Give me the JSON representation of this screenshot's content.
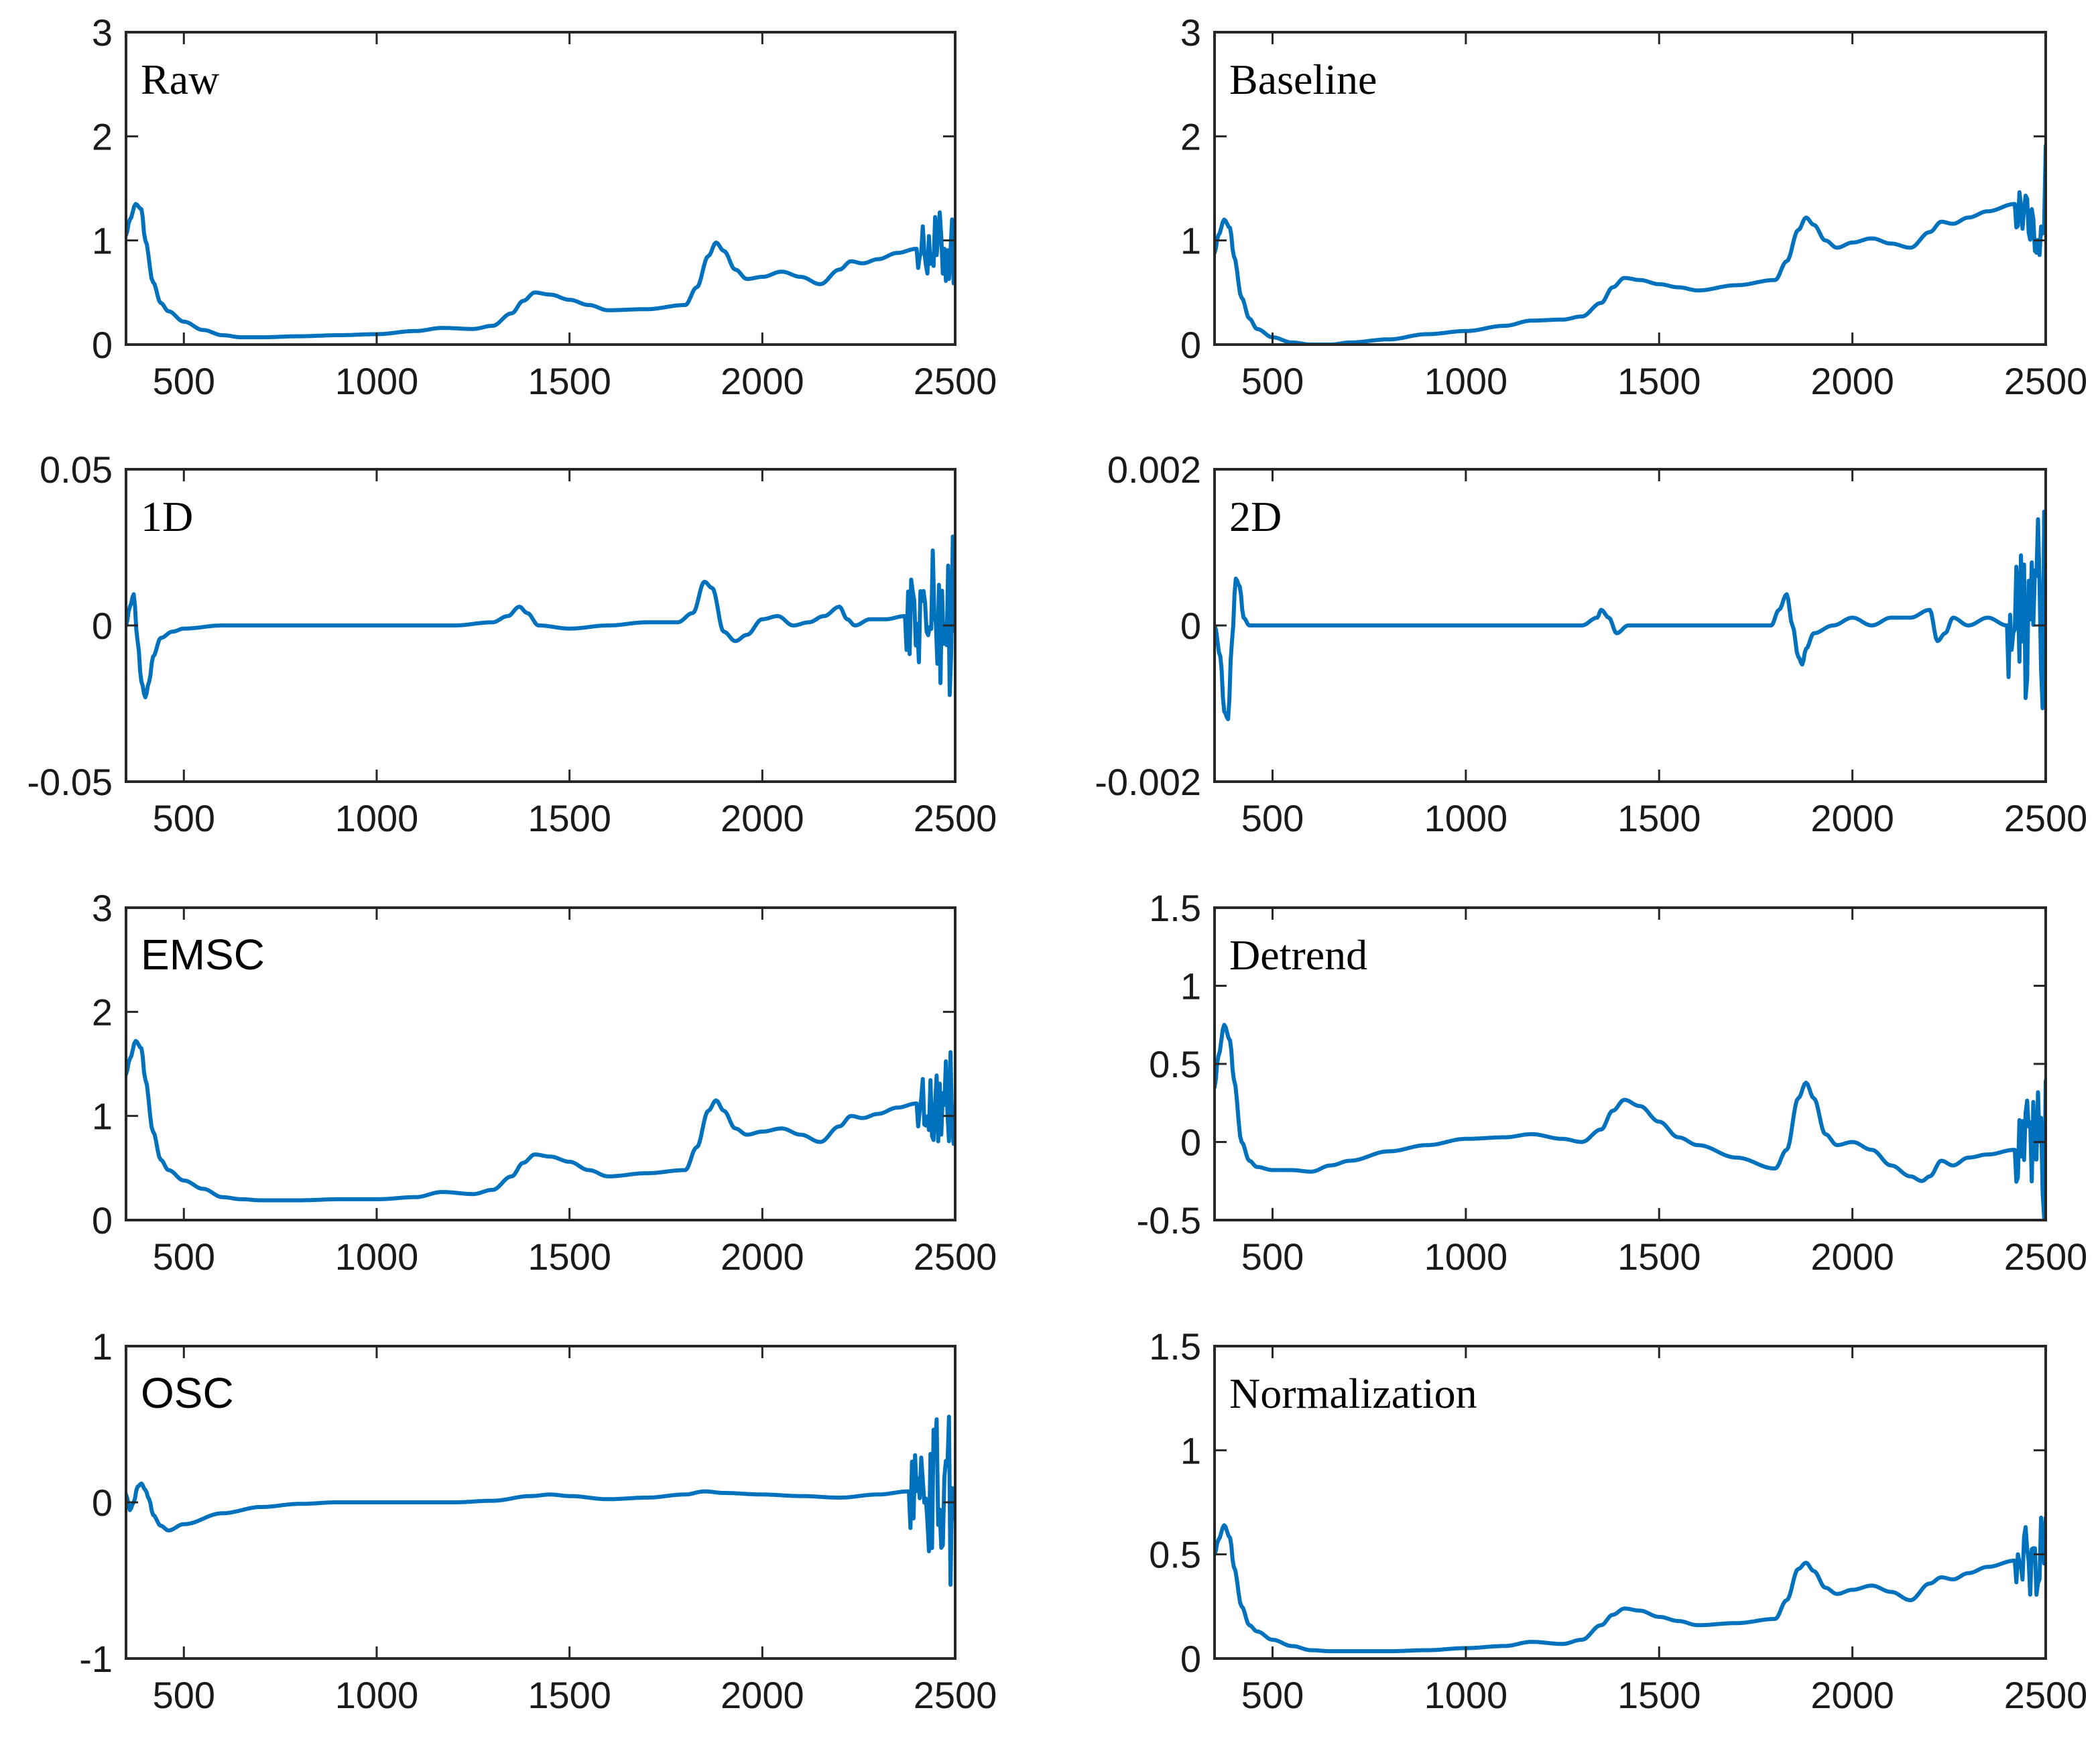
{
  "chart_data": [
    {
      "id": "raw",
      "type": "line",
      "title": "Raw",
      "title_font": "serif",
      "xlim": [
        350,
        2500
      ],
      "ylim": [
        0,
        3
      ],
      "xticks": [
        500,
        1000,
        1500,
        2000,
        2500
      ],
      "xtick_labels": [
        "500",
        "1000",
        "1500",
        "2000",
        "2500"
      ],
      "yticks": [
        0,
        1,
        2,
        3
      ],
      "ytick_labels": [
        "0",
        "1",
        "2",
        "3"
      ],
      "color": "#0072BD",
      "noise_start": 2400,
      "noise_amp": 0.5,
      "series": [
        {
          "name": "Raw",
          "x": [
            350,
            360,
            375,
            390,
            400,
            420,
            440,
            460,
            500,
            550,
            600,
            650,
            700,
            800,
            900,
            1000,
            1100,
            1170,
            1250,
            1300,
            1350,
            1380,
            1410,
            1450,
            1500,
            1550,
            1600,
            1700,
            1800,
            1830,
            1860,
            1880,
            1900,
            1930,
            1960,
            2000,
            2050,
            2100,
            2150,
            2200,
            2230,
            2260,
            2300,
            2350,
            2400
          ],
          "y": [
            1.05,
            1.2,
            1.35,
            1.3,
            1.0,
            0.6,
            0.4,
            0.32,
            0.22,
            0.14,
            0.09,
            0.07,
            0.07,
            0.08,
            0.09,
            0.1,
            0.13,
            0.16,
            0.15,
            0.18,
            0.3,
            0.42,
            0.5,
            0.48,
            0.43,
            0.38,
            0.33,
            0.34,
            0.38,
            0.55,
            0.85,
            0.98,
            0.9,
            0.72,
            0.63,
            0.65,
            0.7,
            0.65,
            0.58,
            0.72,
            0.8,
            0.78,
            0.82,
            0.88,
            0.92
          ]
        }
      ]
    },
    {
      "id": "baseline",
      "type": "line",
      "title": "Baseline",
      "title_font": "serif",
      "xlim": [
        350,
        2500
      ],
      "ylim": [
        0,
        3
      ],
      "xticks": [
        500,
        1000,
        1500,
        2000,
        2500
      ],
      "xtick_labels": [
        "500",
        "1000",
        "1500",
        "2000",
        "2500"
      ],
      "yticks": [
        0,
        1,
        2,
        3
      ],
      "ytick_labels": [
        "0",
        "1",
        "2",
        "3"
      ],
      "color": "#0072BD",
      "noise_start": 2420,
      "noise_amp": 0.6,
      "series": [
        {
          "name": "Baseline",
          "x": [
            350,
            360,
            375,
            390,
            400,
            420,
            440,
            460,
            500,
            550,
            600,
            650,
            700,
            800,
            900,
            1000,
            1100,
            1170,
            1250,
            1300,
            1350,
            1380,
            1410,
            1450,
            1500,
            1550,
            1600,
            1700,
            1800,
            1830,
            1860,
            1880,
            1900,
            1930,
            1960,
            2000,
            2050,
            2100,
            2150,
            2200,
            2230,
            2260,
            2300,
            2350,
            2420
          ],
          "y": [
            0.88,
            1.05,
            1.2,
            1.12,
            0.85,
            0.45,
            0.25,
            0.15,
            0.07,
            0.02,
            0.0,
            0.0,
            0.02,
            0.05,
            0.1,
            0.13,
            0.18,
            0.23,
            0.24,
            0.27,
            0.4,
            0.55,
            0.64,
            0.62,
            0.58,
            0.55,
            0.52,
            0.57,
            0.62,
            0.8,
            1.1,
            1.22,
            1.15,
            1.0,
            0.93,
            0.98,
            1.02,
            0.97,
            0.93,
            1.08,
            1.18,
            1.16,
            1.22,
            1.28,
            1.35
          ]
        }
      ]
    },
    {
      "id": "d1",
      "type": "line",
      "title": "1D",
      "title_font": "serif",
      "xlim": [
        350,
        2500
      ],
      "ylim": [
        -0.05,
        0.05
      ],
      "xticks": [
        500,
        1000,
        1500,
        2000,
        2500
      ],
      "xtick_labels": [
        "500",
        "1000",
        "1500",
        "2000",
        "2500"
      ],
      "yticks": [
        -0.05,
        0,
        0.05
      ],
      "ytick_labels": [
        "-0.05",
        "0",
        "0.05"
      ],
      "color": "#0072BD",
      "noise_start": 2370,
      "noise_amp": 0.03,
      "series": [
        {
          "name": "1D",
          "x": [
            350,
            360,
            370,
            380,
            390,
            400,
            410,
            420,
            440,
            470,
            500,
            600,
            800,
            1000,
            1200,
            1300,
            1340,
            1370,
            1390,
            1420,
            1500,
            1600,
            1700,
            1780,
            1820,
            1850,
            1870,
            1900,
            1930,
            1960,
            2000,
            2040,
            2080,
            2120,
            2160,
            2200,
            2220,
            2240,
            2280,
            2320,
            2370
          ],
          "y": [
            0.0,
            0.006,
            0.01,
            -0.005,
            -0.018,
            -0.023,
            -0.018,
            -0.01,
            -0.004,
            -0.002,
            -0.001,
            0.0,
            0.0,
            0.0,
            0.0,
            0.001,
            0.003,
            0.006,
            0.004,
            0.0,
            -0.001,
            0.0,
            0.001,
            0.001,
            0.004,
            0.014,
            0.012,
            -0.002,
            -0.005,
            -0.003,
            0.002,
            0.003,
            0.0,
            0.001,
            0.003,
            0.006,
            0.002,
            0.0,
            0.002,
            0.002,
            0.003
          ]
        }
      ]
    },
    {
      "id": "d2",
      "type": "line",
      "title": "2D",
      "title_font": "serif",
      "xlim": [
        350,
        2500
      ],
      "ylim": [
        -0.002,
        0.002
      ],
      "xticks": [
        500,
        1000,
        1500,
        2000,
        2500
      ],
      "xtick_labels": [
        "500",
        "1000",
        "1500",
        "2000",
        "2500"
      ],
      "yticks": [
        -0.002,
        0,
        0.002
      ],
      "ytick_labels": [
        "-0.002",
        "0",
        "0.002"
      ],
      "color": "#0072BD",
      "noise_start": 2400,
      "noise_amp": 0.0018,
      "series": [
        {
          "name": "2D",
          "x": [
            350,
            365,
            375,
            385,
            395,
            405,
            415,
            425,
            440,
            460,
            500,
            600,
            800,
            1000,
            1200,
            1300,
            1340,
            1350,
            1370,
            1390,
            1420,
            1500,
            1600,
            1700,
            1790,
            1810,
            1830,
            1845,
            1860,
            1870,
            1880,
            1900,
            1950,
            2000,
            2050,
            2100,
            2150,
            2200,
            2220,
            2240,
            2260,
            2300,
            2350,
            2400
          ],
          "y": [
            0.0,
            -0.0004,
            -0.0011,
            -0.0012,
            -0.0002,
            0.0006,
            0.0005,
            0.0001,
            0.0,
            0.0,
            0.0,
            0.0,
            0.0,
            0.0,
            0.0,
            0.0,
            0.0001,
            0.0002,
            0.0001,
            -0.0001,
            0.0,
            0.0,
            0.0,
            0.0,
            0.0,
            0.0002,
            0.0004,
            0.0,
            -0.0004,
            -0.0005,
            -0.0003,
            -0.0001,
            0.0,
            0.0001,
            0.0,
            0.0001,
            0.0001,
            0.0002,
            -0.0002,
            -0.0001,
            0.0001,
            0.0,
            0.0001,
            0.0
          ]
        }
      ]
    },
    {
      "id": "emsc",
      "type": "line",
      "title": "EMSC",
      "title_font": "sans",
      "xlim": [
        350,
        2500
      ],
      "ylim": [
        0,
        3
      ],
      "xticks": [
        500,
        1000,
        1500,
        2000,
        2500
      ],
      "xtick_labels": [
        "500",
        "1000",
        "1500",
        "2000",
        "2500"
      ],
      "yticks": [
        0,
        1,
        2,
        3
      ],
      "ytick_labels": [
        "0",
        "1",
        "2",
        "3"
      ],
      "color": "#0072BD",
      "noise_start": 2400,
      "noise_amp": 0.6,
      "series": [
        {
          "name": "EMSC",
          "x": [
            350,
            360,
            375,
            390,
            400,
            420,
            440,
            460,
            500,
            550,
            600,
            650,
            700,
            800,
            900,
            1000,
            1100,
            1170,
            1250,
            1300,
            1350,
            1380,
            1410,
            1450,
            1500,
            1550,
            1600,
            1700,
            1800,
            1830,
            1860,
            1880,
            1900,
            1930,
            1960,
            2000,
            2050,
            2100,
            2150,
            2200,
            2230,
            2260,
            2300,
            2350,
            2400
          ],
          "y": [
            1.4,
            1.55,
            1.72,
            1.65,
            1.35,
            0.85,
            0.58,
            0.48,
            0.38,
            0.3,
            0.22,
            0.2,
            0.19,
            0.19,
            0.2,
            0.2,
            0.22,
            0.27,
            0.25,
            0.29,
            0.42,
            0.55,
            0.63,
            0.61,
            0.56,
            0.48,
            0.42,
            0.45,
            0.48,
            0.7,
            1.05,
            1.15,
            1.05,
            0.88,
            0.82,
            0.85,
            0.88,
            0.82,
            0.75,
            0.9,
            1.0,
            0.98,
            1.02,
            1.08,
            1.12
          ]
        }
      ]
    },
    {
      "id": "detrend",
      "type": "line",
      "title": "Detrend",
      "title_font": "serif",
      "xlim": [
        350,
        2500
      ],
      "ylim": [
        -0.5,
        1.5
      ],
      "xticks": [
        500,
        1000,
        1500,
        2000,
        2500
      ],
      "xtick_labels": [
        "500",
        "1000",
        "1500",
        "2000",
        "2500"
      ],
      "yticks": [
        -0.5,
        0,
        0.5,
        1,
        1.5
      ],
      "ytick_labels": [
        "-0.5",
        "0",
        "0.5",
        "1",
        "1.5"
      ],
      "color": "#0072BD",
      "noise_start": 2420,
      "noise_amp": 0.55,
      "series": [
        {
          "name": "Detrend",
          "x": [
            350,
            360,
            375,
            390,
            400,
            420,
            440,
            460,
            500,
            550,
            600,
            650,
            700,
            800,
            900,
            1000,
            1100,
            1170,
            1250,
            1300,
            1350,
            1380,
            1410,
            1450,
            1500,
            1550,
            1600,
            1700,
            1800,
            1830,
            1860,
            1880,
            1900,
            1930,
            1960,
            2000,
            2050,
            2100,
            2150,
            2180,
            2200,
            2230,
            2260,
            2300,
            2350,
            2420
          ],
          "y": [
            0.35,
            0.55,
            0.75,
            0.65,
            0.4,
            0.0,
            -0.12,
            -0.16,
            -0.18,
            -0.18,
            -0.19,
            -0.15,
            -0.12,
            -0.06,
            -0.02,
            0.02,
            0.03,
            0.05,
            0.02,
            0.0,
            0.08,
            0.2,
            0.27,
            0.23,
            0.13,
            0.03,
            -0.02,
            -0.1,
            -0.17,
            -0.05,
            0.28,
            0.38,
            0.28,
            0.05,
            -0.02,
            0.0,
            -0.05,
            -0.15,
            -0.22,
            -0.25,
            -0.22,
            -0.12,
            -0.15,
            -0.1,
            -0.08,
            -0.05
          ]
        }
      ]
    },
    {
      "id": "osc",
      "type": "line",
      "title": "OSC",
      "title_font": "sans",
      "xlim": [
        350,
        2500
      ],
      "ylim": [
        -1,
        1
      ],
      "xticks": [
        500,
        1000,
        1500,
        2000,
        2500
      ],
      "xtick_labels": [
        "500",
        "1000",
        "1500",
        "2000",
        "2500"
      ],
      "yticks": [
        -1,
        0,
        1
      ],
      "ytick_labels": [
        "-1",
        "0",
        "1"
      ],
      "color": "#0072BD",
      "noise_start": 2380,
      "noise_amp": 0.65,
      "series": [
        {
          "name": "OSC",
          "x": [
            350,
            360,
            370,
            380,
            390,
            400,
            410,
            420,
            440,
            460,
            500,
            600,
            700,
            800,
            900,
            1000,
            1100,
            1200,
            1300,
            1400,
            1450,
            1500,
            1600,
            1700,
            1800,
            1850,
            1900,
            2000,
            2100,
            2200,
            2300,
            2380
          ],
          "y": [
            0.05,
            -0.05,
            0.0,
            0.1,
            0.12,
            0.08,
            0.02,
            -0.08,
            -0.15,
            -0.18,
            -0.14,
            -0.07,
            -0.03,
            -0.01,
            0.0,
            0.0,
            0.0,
            0.0,
            0.01,
            0.04,
            0.05,
            0.04,
            0.02,
            0.03,
            0.05,
            0.07,
            0.06,
            0.05,
            0.04,
            0.03,
            0.05,
            0.07
          ]
        }
      ]
    },
    {
      "id": "normalization",
      "type": "line",
      "title": "Normalization",
      "title_font": "serif",
      "xlim": [
        350,
        2500
      ],
      "ylim": [
        0,
        1.5
      ],
      "xticks": [
        500,
        1000,
        1500,
        2000,
        2500
      ],
      "xtick_labels": [
        "500",
        "1000",
        "1500",
        "2000",
        "2500"
      ],
      "yticks": [
        0,
        0.5,
        1,
        1.5
      ],
      "ytick_labels": [
        "0",
        "0.5",
        "1",
        "1.5"
      ],
      "color": "#0072BD",
      "noise_start": 2420,
      "noise_amp": 0.28,
      "series": [
        {
          "name": "Normalization",
          "x": [
            350,
            360,
            375,
            390,
            400,
            420,
            440,
            460,
            500,
            550,
            600,
            650,
            700,
            800,
            900,
            1000,
            1100,
            1170,
            1250,
            1300,
            1350,
            1380,
            1410,
            1450,
            1500,
            1550,
            1600,
            1700,
            1800,
            1830,
            1860,
            1880,
            1900,
            1930,
            1960,
            2000,
            2050,
            2100,
            2150,
            2200,
            2230,
            2260,
            2300,
            2350,
            2420
          ],
          "y": [
            0.5,
            0.57,
            0.64,
            0.58,
            0.44,
            0.25,
            0.16,
            0.13,
            0.09,
            0.06,
            0.04,
            0.035,
            0.035,
            0.035,
            0.04,
            0.05,
            0.06,
            0.08,
            0.07,
            0.09,
            0.16,
            0.21,
            0.24,
            0.23,
            0.2,
            0.18,
            0.16,
            0.17,
            0.19,
            0.28,
            0.43,
            0.46,
            0.42,
            0.34,
            0.31,
            0.33,
            0.35,
            0.32,
            0.28,
            0.36,
            0.39,
            0.38,
            0.41,
            0.44,
            0.47
          ]
        }
      ]
    }
  ]
}
